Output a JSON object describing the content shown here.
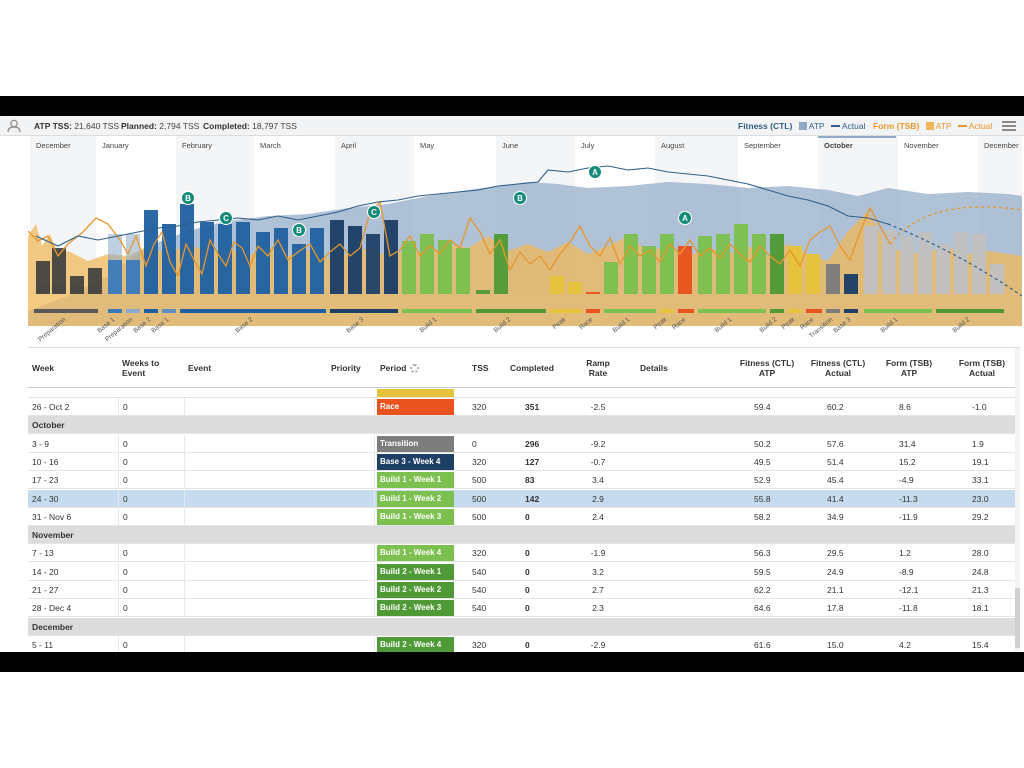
{
  "summary": {
    "atp_label": "ATP TSS:",
    "atp_value": "21,640 TSS",
    "planned_label": "Planned:",
    "planned_value": "2,794 TSS",
    "completed_label": "Completed:",
    "completed_value": "18,797 TSS"
  },
  "legend": {
    "fitness_label": "Fitness (CTL)",
    "fitness_atp": "ATP",
    "fitness_actual": "Actual",
    "form_label": "Form (TSB)",
    "form_atp": "ATP",
    "form_actual": "Actual",
    "colors": {
      "fitness": "#2f5f8a",
      "fitness_swatch": "#8fa9c9",
      "form": "#e8962a",
      "form_swatch": "#f0b85a"
    }
  },
  "months": [
    "December",
    "January",
    "February",
    "March",
    "April",
    "May",
    "June",
    "July",
    "August",
    "September",
    "October",
    "November",
    "December"
  ],
  "selected_month": "October",
  "period_segments": [
    "Preparation",
    "Base 1",
    "Preparation",
    "Base 2",
    "Base 1",
    "Base 2",
    "Base 3",
    "Build 1",
    "Build 2",
    "Peak",
    "Race",
    "Build 1",
    "Peak",
    "Race",
    "Build 1",
    "Build 2",
    "Peak",
    "Race",
    "Transition",
    "Base 3",
    "Build 1",
    "Build 2"
  ],
  "event_markers": [
    "B",
    "C",
    "B",
    "C",
    "B",
    "A",
    "A"
  ],
  "table": {
    "headers": {
      "week": "Week",
      "weeks_to_event": "Weeks to Event",
      "event": "Event",
      "priority": "Priority",
      "period": "Period",
      "tss": "TSS",
      "completed": "Completed",
      "ramp_rate": "Ramp Rate",
      "details": "Details",
      "fitness_atp": "Fitness (CTL) ATP",
      "fitness_actual": "Fitness (CTL) Actual",
      "form_atp": "Form (TSB) ATP",
      "form_actual": "Form (TSB) Actual"
    },
    "rows": [
      {
        "type": "week",
        "week": "26 - Oct 2",
        "wte": "0",
        "period": "Race",
        "color": "#e8531f",
        "tss": "320",
        "completed": "351",
        "ramp": "-2.5",
        "f_atp": "59.4",
        "f_act": "60.2",
        "t_atp": "8.6",
        "t_act": "-1.0"
      },
      {
        "type": "month",
        "label": "October"
      },
      {
        "type": "week",
        "week": "3 - 9",
        "wte": "0",
        "period": "Transition",
        "color": "#7d7d7d",
        "tss": "0",
        "completed": "296",
        "ramp": "-9.2",
        "f_atp": "50.2",
        "f_act": "57.6",
        "t_atp": "31.4",
        "t_act": "1.9"
      },
      {
        "type": "week",
        "week": "10 - 16",
        "wte": "0",
        "period": "Base 3 - Week 4",
        "color": "#1d3f66",
        "tss": "320",
        "completed": "127",
        "ramp": "-0.7",
        "f_atp": "49.5",
        "f_act": "51.4",
        "t_atp": "15.2",
        "t_act": "19.1"
      },
      {
        "type": "week",
        "week": "17 - 23",
        "wte": "0",
        "period": "Build 1 - Week 1",
        "color": "#7cc04f",
        "tss": "500",
        "completed": "83",
        "ramp": "3.4",
        "f_atp": "52.9",
        "f_act": "45.4",
        "t_atp": "-4.9",
        "t_act": "33.1"
      },
      {
        "type": "week",
        "week": "24 - 30",
        "wte": "0",
        "period": "Build 1 - Week 2",
        "color": "#7cc04f",
        "tss": "500",
        "completed": "142",
        "ramp": "2.9",
        "f_atp": "55.8",
        "f_act": "41.4",
        "t_atp": "-11.3",
        "t_act": "23.0",
        "selected": true
      },
      {
        "type": "week",
        "week": "31 - Nov 6",
        "wte": "0",
        "period": "Build 1 - Week 3",
        "color": "#7cc04f",
        "tss": "500",
        "completed": "0",
        "ramp": "2.4",
        "f_atp": "58.2",
        "f_act": "34.9",
        "t_atp": "-11.9",
        "t_act": "29.2"
      },
      {
        "type": "month",
        "label": "November"
      },
      {
        "type": "week",
        "week": "7 - 13",
        "wte": "0",
        "period": "Build 1 - Week 4",
        "color": "#7cc04f",
        "tss": "320",
        "completed": "0",
        "ramp": "-1.9",
        "f_atp": "56.3",
        "f_act": "29.5",
        "t_atp": "1.2",
        "t_act": "28.0"
      },
      {
        "type": "week",
        "week": "14 - 20",
        "wte": "0",
        "period": "Build 2 - Week 1",
        "color": "#4f9a36",
        "tss": "540",
        "completed": "0",
        "ramp": "3.2",
        "f_atp": "59.5",
        "f_act": "24.9",
        "t_atp": "-8.9",
        "t_act": "24.8"
      },
      {
        "type": "week",
        "week": "21 - 27",
        "wte": "0",
        "period": "Build 2 - Week 2",
        "color": "#4f9a36",
        "tss": "540",
        "completed": "0",
        "ramp": "2.7",
        "f_atp": "62.2",
        "f_act": "21.1",
        "t_atp": "-12.1",
        "t_act": "21.3"
      },
      {
        "type": "week",
        "week": "28 - Dec 4",
        "wte": "0",
        "period": "Build 2 - Week 3",
        "color": "#4f9a36",
        "tss": "540",
        "completed": "0",
        "ramp": "2.3",
        "f_atp": "64.6",
        "f_act": "17.8",
        "t_atp": "-11.8",
        "t_act": "18.1"
      },
      {
        "type": "month",
        "label": "December"
      },
      {
        "type": "week",
        "week": "5 - 11",
        "wte": "0",
        "period": "Build 2 - Week 4",
        "color": "#4f9a36",
        "tss": "320",
        "completed": "0",
        "ramp": "-2.9",
        "f_atp": "61.6",
        "f_act": "15.0",
        "t_atp": "4.2",
        "t_act": "15.4"
      }
    ]
  }
}
